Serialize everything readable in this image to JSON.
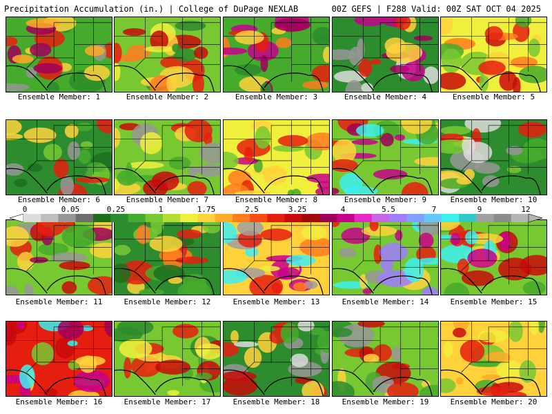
{
  "header": {
    "left": "Precipitation Accumulation (in.) | College of DuPage NEXLAB",
    "right": "00Z GEFS | F288 Valid: 00Z SAT OCT 04 2025"
  },
  "colorbar": {
    "ticks": [
      "0",
      "0.05",
      "0.25",
      "1",
      "1.75",
      "2.5",
      "3.25",
      "4",
      "5.5",
      "7",
      "9",
      "12"
    ],
    "colors": [
      "#dcdcdc",
      "#bebebe",
      "#969696",
      "#6e6e6e",
      "#1e6e1e",
      "#2d8c2d",
      "#46aa2d",
      "#78c832",
      "#b4dc32",
      "#f0f03c",
      "#ffd23c",
      "#ffaa28",
      "#ff7d1e",
      "#fa4b14",
      "#e61e0f",
      "#c80a0a",
      "#a00a0a",
      "#a0005a",
      "#c8008c",
      "#e628c8",
      "#c864e6",
      "#a07dff",
      "#82a0ff",
      "#64c8ff",
      "#3cf0f0",
      "#32c8c8",
      "#a0a0a0",
      "#8c8c8c",
      "#b4b4b4"
    ]
  },
  "members": [
    {
      "label": "Ensemble Member: 1",
      "bg": "#46aa2d",
      "blobs": [
        "#2d8c2d",
        "#ffd23c",
        "#e61e0f",
        "#a0005a",
        "#ffaa28",
        "#969696"
      ]
    },
    {
      "label": "Ensemble Member: 2",
      "bg": "#78c832",
      "blobs": [
        "#2d8c2d",
        "#e61e0f",
        "#ffd23c",
        "#c80a0a",
        "#f0f03c",
        "#ff7d1e"
      ]
    },
    {
      "label": "Ensemble Member: 3",
      "bg": "#46aa2d",
      "blobs": [
        "#2d8c2d",
        "#e61e0f",
        "#c8008c",
        "#ffd23c",
        "#ff7d1e",
        "#a0005a"
      ]
    },
    {
      "label": "Ensemble Member: 4",
      "bg": "#2d8c2d",
      "blobs": [
        "#969696",
        "#dcdcdc",
        "#c8008c",
        "#e61e0f",
        "#ffd23c",
        "#a0005a"
      ]
    },
    {
      "label": "Ensemble Member: 5",
      "bg": "#f0f03c",
      "blobs": [
        "#ffd23c",
        "#e61e0f",
        "#78c832",
        "#c80a0a",
        "#ff7d1e",
        "#46aa2d"
      ]
    },
    {
      "label": "Ensemble Member: 6",
      "bg": "#2d8c2d",
      "blobs": [
        "#46aa2d",
        "#969696",
        "#ffd23c",
        "#e61e0f",
        "#78c832",
        "#1e6e1e"
      ]
    },
    {
      "label": "Ensemble Member: 7",
      "bg": "#78c832",
      "blobs": [
        "#ffd23c",
        "#e61e0f",
        "#46aa2d",
        "#969696",
        "#f0f03c",
        "#c80a0a"
      ]
    },
    {
      "label": "Ensemble Member: 8",
      "bg": "#f0f03c",
      "blobs": [
        "#ffd23c",
        "#c8008c",
        "#e61e0f",
        "#78c832",
        "#ff7d1e",
        "#46aa2d"
      ]
    },
    {
      "label": "Ensemble Member: 9",
      "bg": "#78c832",
      "blobs": [
        "#c8008c",
        "#e61e0f",
        "#3cf0f0",
        "#ffd23c",
        "#a0005a",
        "#46aa2d"
      ]
    },
    {
      "label": "Ensemble Member: 10",
      "bg": "#2d8c2d",
      "blobs": [
        "#46aa2d",
        "#dcdcdc",
        "#969696",
        "#ffd23c",
        "#e61e0f",
        "#78c832"
      ]
    },
    {
      "label": "Ensemble Member: 11",
      "bg": "#78c832",
      "blobs": [
        "#ffd23c",
        "#e61e0f",
        "#969696",
        "#c80a0a",
        "#46aa2d",
        "#a0005a"
      ]
    },
    {
      "label": "Ensemble Member: 12",
      "bg": "#2d8c2d",
      "blobs": [
        "#46aa2d",
        "#ffd23c",
        "#e61e0f",
        "#78c832",
        "#ff7d1e",
        "#1e6e1e"
      ]
    },
    {
      "label": "Ensemble Member: 13",
      "bg": "#ffd23c",
      "blobs": [
        "#c8008c",
        "#3cf0f0",
        "#a0a0a0",
        "#e61e0f",
        "#f0f03c",
        "#ff7d1e"
      ]
    },
    {
      "label": "Ensemble Member: 14",
      "bg": "#78c832",
      "blobs": [
        "#e61e0f",
        "#c8008c",
        "#3cf0f0",
        "#a07dff",
        "#ffd23c",
        "#969696"
      ]
    },
    {
      "label": "Ensemble Member: 15",
      "bg": "#78c832",
      "blobs": [
        "#e61e0f",
        "#ffd23c",
        "#3cf0f0",
        "#c80a0a",
        "#46aa2d",
        "#c8008c"
      ]
    },
    {
      "label": "Ensemble Member: 16",
      "bg": "#e61e0f",
      "blobs": [
        "#c80a0a",
        "#3cf0f0",
        "#c8008c",
        "#ffd23c",
        "#a0005a",
        "#78c832"
      ]
    },
    {
      "label": "Ensemble Member: 17",
      "bg": "#78c832",
      "blobs": [
        "#46aa2d",
        "#ffd23c",
        "#e61e0f",
        "#f0f03c",
        "#2d8c2d",
        "#c80a0a"
      ]
    },
    {
      "label": "Ensemble Member: 18",
      "bg": "#2d8c2d",
      "blobs": [
        "#969696",
        "#e61e0f",
        "#ffd23c",
        "#46aa2d",
        "#dcdcdc",
        "#c80a0a"
      ]
    },
    {
      "label": "Ensemble Member: 19",
      "bg": "#78c832",
      "blobs": [
        "#969696",
        "#e61e0f",
        "#ffd23c",
        "#2d8c2d",
        "#c80a0a",
        "#46aa2d"
      ]
    },
    {
      "label": "Ensemble Member: 20",
      "bg": "#ffd23c",
      "blobs": [
        "#e61e0f",
        "#78c832",
        "#f0f03c",
        "#ffaa28",
        "#46aa2d",
        "#c80a0a"
      ]
    }
  ]
}
